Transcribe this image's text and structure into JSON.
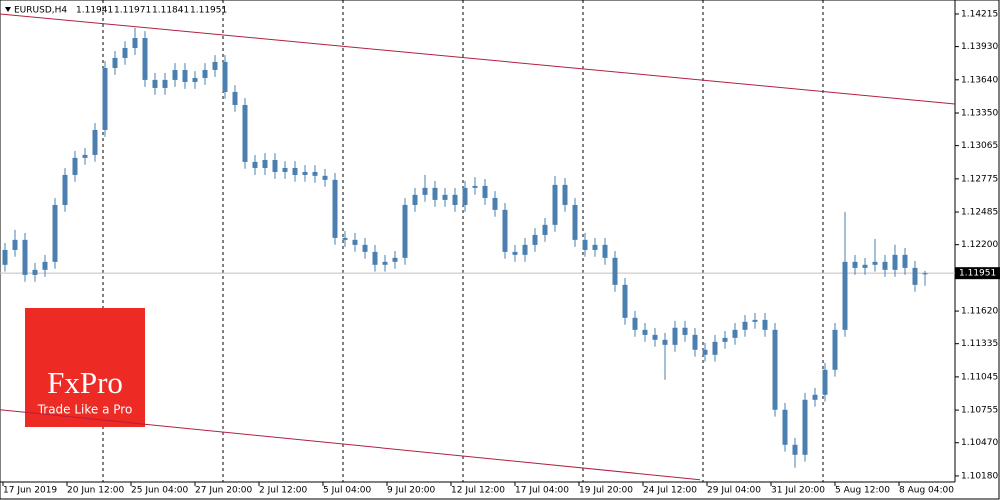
{
  "chart_data": {
    "type": "candlestick",
    "symbol": "EURUSD,H4",
    "ohlc_header": [
      1.11941,
      1.11971,
      1.11841,
      1.11951
    ],
    "current_price": 1.11951,
    "color": "#4a7fb0",
    "ylim": [
      1.10127,
      1.14337
    ],
    "yticks": [
      1.14215,
      {
        "value": 1.1393,
        "label": "1.13930"
      },
      {
        "value": 1.1364,
        "label": "1.13640"
      },
      {
        "value": 1.1335,
        "label": "1.13350"
      },
      1.13065,
      1.12775,
      1.12485,
      {
        "value": 1.122,
        "label": "1.12200"
      },
      {
        "value": 1.1162,
        "label": "1.11620"
      },
      1.11335,
      1.11045,
      1.10755,
      {
        "value": 1.1047,
        "label": "1.10470"
      },
      {
        "value": 1.1018,
        "label": "1.10180"
      }
    ],
    "x_labels": [
      "17 Jun 2019",
      "20 Jun 12:00",
      "25 Jun 04:00",
      "27 Jun 20:00",
      "2 Jul 12:00",
      "5 Jul 04:00",
      "9 Jul 20:00",
      "12 Jul 12:00",
      "17 Jul 04:00",
      "19 Jul 20:00",
      "24 Jul 12:00",
      "29 Jul 04:00",
      "31 Jul 20:00",
      "5 Aug 12:00",
      "8 Aug 04:00"
    ],
    "channel_lines": [
      {
        "color": "#b22040",
        "points": [
          [
            -0.5,
            1.14215
          ],
          [
            95,
            1.13429
          ]
        ]
      },
      {
        "color": "#b22040",
        "points": [
          [
            -0.5,
            1.10758
          ],
          [
            69.5,
            1.10147
          ]
        ]
      }
    ],
    "candles": [
      [
        1.12024,
        1.12214,
        1.11964,
        1.12154
      ],
      [
        1.12154,
        1.12329,
        1.12094,
        1.12242
      ],
      [
        1.12242,
        1.12302,
        1.11876,
        1.11936
      ],
      [
        1.11936,
        1.1204,
        1.11876,
        1.1198
      ],
      [
        1.1198,
        1.1211,
        1.1192,
        1.1205
      ],
      [
        1.1205,
        1.12607,
        1.1199,
        1.12547
      ],
      [
        1.12547,
        1.12869,
        1.12487,
        1.12809
      ],
      [
        1.12809,
        1.13018,
        1.12749,
        1.12958
      ],
      [
        1.12958,
        1.13044,
        1.12898,
        1.12984
      ],
      [
        1.12984,
        1.13262,
        1.12924,
        1.13202
      ],
      [
        1.13202,
        1.13803,
        1.13142,
        1.13743
      ],
      [
        1.13743,
        1.13891,
        1.13683,
        1.13831
      ],
      [
        1.13831,
        1.13978,
        1.13771,
        1.13918
      ],
      [
        1.13918,
        1.14093,
        1.13858,
        1.14005
      ],
      [
        1.14005,
        1.14065,
        1.13579,
        1.13639
      ],
      [
        1.13639,
        1.13699,
        1.13509,
        1.13569
      ],
      [
        1.13569,
        1.13699,
        1.13509,
        1.13639
      ],
      [
        1.13639,
        1.13786,
        1.13579,
        1.13726
      ],
      [
        1.13726,
        1.13786,
        1.13561,
        1.13621
      ],
      [
        1.13621,
        1.13716,
        1.13561,
        1.13656
      ],
      [
        1.13656,
        1.13786,
        1.13596,
        1.13726
      ],
      [
        1.13726,
        1.13856,
        1.13666,
        1.13796
      ],
      [
        1.13796,
        1.13856,
        1.13474,
        1.13534
      ],
      [
        1.13534,
        1.13594,
        1.1336,
        1.1342
      ],
      [
        1.1342,
        1.1348,
        1.12863,
        1.12923
      ],
      [
        1.12923,
        1.12983,
        1.1281,
        1.1287
      ],
      [
        1.1287,
        1.13,
        1.1281,
        1.1294
      ],
      [
        1.1294,
        1.13,
        1.12775,
        1.12835
      ],
      [
        1.12835,
        1.1293,
        1.12775,
        1.1287
      ],
      [
        1.1287,
        1.1293,
        1.12749,
        1.12809
      ],
      [
        1.12809,
        1.12895,
        1.12749,
        1.12835
      ],
      [
        1.12835,
        1.12895,
        1.12741,
        1.12801
      ],
      [
        1.12801,
        1.12861,
        1.12706,
        1.12766
      ],
      [
        1.12766,
        1.12826,
        1.12199,
        1.12259
      ],
      [
        1.12259,
        1.12319,
        1.12182,
        1.12242
      ],
      [
        1.12242,
        1.12302,
        1.12138,
        1.12198
      ],
      [
        1.12198,
        1.12258,
        1.12077,
        1.12137
      ],
      [
        1.12137,
        1.12197,
        1.11964,
        1.12024
      ],
      [
        1.12024,
        1.1211,
        1.11964,
        1.1205
      ],
      [
        1.1205,
        1.12145,
        1.1199,
        1.12085
      ],
      [
        1.12085,
        1.12607,
        1.12025,
        1.12547
      ],
      [
        1.12547,
        1.12695,
        1.12487,
        1.12635
      ],
      [
        1.12635,
        1.1281,
        1.12575,
        1.12696
      ],
      [
        1.12696,
        1.12756,
        1.12531,
        1.12591
      ],
      [
        1.12591,
        1.12695,
        1.12531,
        1.12635
      ],
      [
        1.12635,
        1.12695,
        1.12487,
        1.12547
      ],
      [
        1.12547,
        1.12756,
        1.12487,
        1.12696
      ],
      [
        1.12696,
        1.1279,
        1.12636,
        1.12713
      ],
      [
        1.12713,
        1.12773,
        1.12548,
        1.12608
      ],
      [
        1.12608,
        1.12668,
        1.12444,
        1.12504
      ],
      [
        1.12504,
        1.12564,
        1.12077,
        1.12137
      ],
      [
        1.12137,
        1.12197,
        1.12051,
        1.12111
      ],
      [
        1.12111,
        1.12258,
        1.12051,
        1.12198
      ],
      [
        1.12198,
        1.12345,
        1.12138,
        1.12285
      ],
      [
        1.12285,
        1.12433,
        1.12225,
        1.12373
      ],
      [
        1.12373,
        1.128,
        1.12313,
        1.12722
      ],
      [
        1.12722,
        1.12782,
        1.12487,
        1.12547
      ],
      [
        1.12547,
        1.12607,
        1.12182,
        1.12242
      ],
      [
        1.12242,
        1.12302,
        1.12094,
        1.12154
      ],
      [
        1.12154,
        1.12258,
        1.12094,
        1.12198
      ],
      [
        1.12198,
        1.12258,
        1.12025,
        1.12085
      ],
      [
        1.12085,
        1.12145,
        1.11789,
        1.11849
      ],
      [
        1.11849,
        1.11909,
        1.11501,
        1.11561
      ],
      [
        1.11561,
        1.11621,
        1.11396,
        1.11456
      ],
      [
        1.11456,
        1.11516,
        1.11352,
        1.11412
      ],
      [
        1.11412,
        1.11472,
        1.11309,
        1.11369
      ],
      [
        1.11369,
        1.11429,
        1.1102,
        1.11325
      ],
      [
        1.11325,
        1.11534,
        1.11265,
        1.11474
      ],
      [
        1.11474,
        1.11534,
        1.11352,
        1.11412
      ],
      [
        1.11412,
        1.11472,
        1.11222,
        1.11282
      ],
      [
        1.11282,
        1.11342,
        1.11178,
        1.11238
      ],
      [
        1.11238,
        1.11411,
        1.11178,
        1.11351
      ],
      [
        1.11351,
        1.11446,
        1.11291,
        1.11386
      ],
      [
        1.11386,
        1.11516,
        1.11326,
        1.11456
      ],
      [
        1.11456,
        1.11586,
        1.11396,
        1.11526
      ],
      [
        1.11526,
        1.11603,
        1.11466,
        1.11543
      ],
      [
        1.11543,
        1.11603,
        1.11396,
        1.11456
      ],
      [
        1.11456,
        1.11516,
        1.10698,
        1.10758
      ],
      [
        1.10758,
        1.10818,
        1.10392,
        1.10452
      ],
      [
        1.10452,
        1.10512,
        1.10251,
        1.10365
      ],
      [
        1.10365,
        1.10905,
        1.10305,
        1.10845
      ],
      [
        1.10845,
        1.10949,
        1.10785,
        1.10889
      ],
      [
        1.10889,
        1.11167,
        1.10829,
        1.11107
      ],
      [
        1.11107,
        1.11516,
        1.11047,
        1.11456
      ],
      [
        1.11456,
        1.12486,
        1.11396,
        1.1205
      ],
      [
        1.1205,
        1.1211,
        1.11937,
        1.11997
      ],
      [
        1.11997,
        1.12084,
        1.11937,
        1.12024
      ],
      [
        1.12024,
        1.1225,
        1.11964,
        1.1205
      ],
      [
        1.1205,
        1.1211,
        1.1192,
        1.1198
      ],
      [
        1.1198,
        1.122,
        1.1192,
        1.12111
      ],
      [
        1.12111,
        1.12171,
        1.11937,
        1.11997
      ],
      [
        1.11997,
        1.12057,
        1.11789,
        1.11849
      ],
      [
        1.11941,
        1.11971,
        1.11841,
        1.11951
      ]
    ]
  },
  "logo": {
    "name": "FxPro",
    "tagline": "Trade Like a Pro"
  }
}
